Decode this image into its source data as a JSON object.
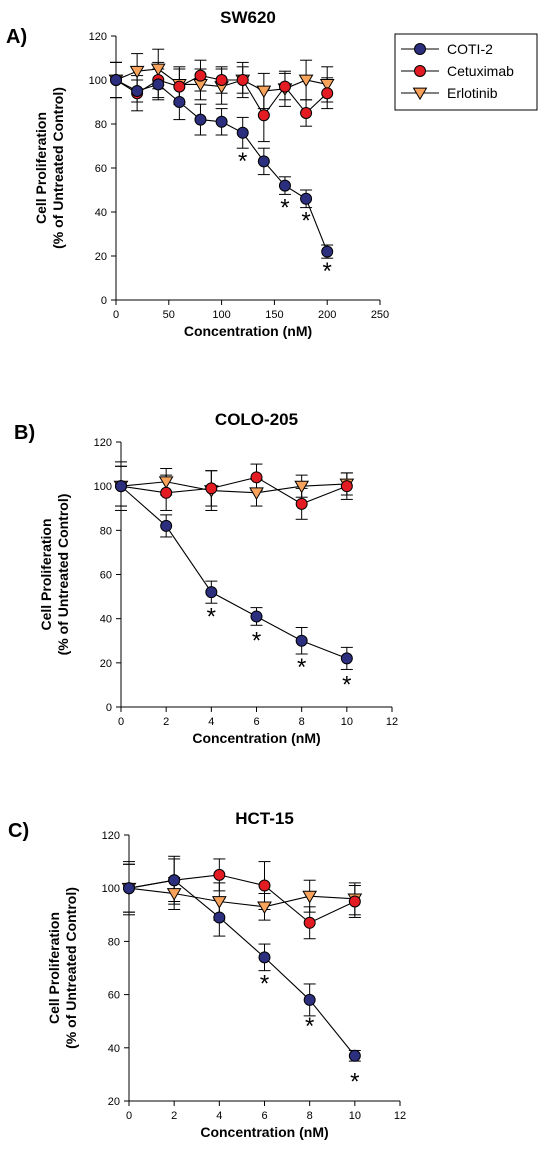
{
  "chart_data": [
    {
      "type": "line",
      "letter": "A)",
      "title": "SW620",
      "xlabel": "Concentration (nM)",
      "ylabel_line1": "Cell Proliferation",
      "ylabel_line2": "(% of Untreated Control)",
      "xlim": [
        0,
        250
      ],
      "ylim": [
        0,
        120
      ],
      "xticks": [
        "0",
        "50",
        "100",
        "150",
        "200",
        "250"
      ],
      "yticks": [
        "0",
        "20",
        "40",
        "60",
        "80",
        "100",
        "120"
      ],
      "series": [
        {
          "name": "COTI-2",
          "x": [
            0,
            20,
            40,
            60,
            80,
            100,
            120,
            140,
            160,
            180,
            200
          ],
          "y": [
            100,
            95,
            98,
            90,
            82,
            81,
            76,
            63,
            52,
            46,
            22
          ],
          "err": [
            8,
            5,
            7,
            8,
            7,
            6,
            7,
            6,
            4,
            4,
            3
          ]
        },
        {
          "name": "Cetuximab",
          "x": [
            0,
            20,
            40,
            60,
            80,
            100,
            120,
            140,
            160,
            180,
            200
          ],
          "y": [
            100,
            94,
            100,
            97,
            102,
            100,
            100,
            84,
            97,
            85,
            94
          ],
          "err": [
            8,
            8,
            8,
            8,
            7,
            6,
            6,
            12,
            6,
            6,
            7
          ]
        },
        {
          "name": "Erlotinib",
          "x": [
            0,
            20,
            40,
            60,
            80,
            100,
            120,
            140,
            160,
            180,
            200
          ],
          "y": [
            100,
            104,
            105,
            98,
            98,
            97,
            100,
            95,
            96,
            100,
            98
          ],
          "err": [
            8,
            8,
            9,
            8,
            7,
            8,
            8,
            8,
            8,
            9,
            8
          ]
        }
      ],
      "significance": [
        {
          "x": 120,
          "y": 64,
          "label": "*"
        },
        {
          "x": 160,
          "y": 43,
          "label": "*"
        },
        {
          "x": 180,
          "y": 37,
          "label": "*"
        },
        {
          "x": 200,
          "y": 14,
          "label": "*"
        }
      ],
      "legend": {
        "position": "right",
        "entries": [
          "COTI-2",
          "Cetuximab",
          "Erlotinib"
        ]
      }
    },
    {
      "type": "line",
      "letter": "B)",
      "title": "COLO-205",
      "xlabel": "Concentration (nM)",
      "ylabel_line1": "Cell Proliferation",
      "ylabel_line2": "(% of Untreated Control)",
      "xlim": [
        0,
        12
      ],
      "ylim": [
        0,
        120
      ],
      "xticks": [
        "0",
        "2",
        "4",
        "6",
        "8",
        "10",
        "12"
      ],
      "yticks": [
        "0",
        "20",
        "40",
        "60",
        "80",
        "100",
        "120"
      ],
      "series": [
        {
          "name": "COTI-2",
          "x": [
            0,
            2,
            4,
            6,
            8,
            10
          ],
          "y": [
            100,
            82,
            52,
            41,
            30,
            22
          ],
          "err": [
            9,
            5,
            5,
            4,
            6,
            5
          ]
        },
        {
          "name": "Cetuximab",
          "x": [
            0,
            2,
            4,
            6,
            8,
            10
          ],
          "y": [
            100,
            97,
            99,
            104,
            92,
            100
          ],
          "err": [
            9,
            8,
            8,
            6,
            7,
            6
          ]
        },
        {
          "name": "Erlotinib",
          "x": [
            0,
            2,
            4,
            6,
            8,
            10
          ],
          "y": [
            100,
            102,
            98,
            97,
            100,
            101
          ],
          "err": [
            11,
            6,
            9,
            6,
            5,
            5
          ]
        }
      ],
      "significance": [
        {
          "x": 4,
          "y": 42,
          "label": "*"
        },
        {
          "x": 6,
          "y": 31,
          "label": "*"
        },
        {
          "x": 8,
          "y": 19,
          "label": "*"
        },
        {
          "x": 10,
          "y": 11,
          "label": "*"
        }
      ]
    },
    {
      "type": "line",
      "letter": "C)",
      "title": "HCT-15",
      "xlabel": "Concentration (nM)",
      "ylabel_line1": "Cell Proliferation",
      "ylabel_line2": "(% of Untreated Control)",
      "xlim": [
        0,
        12
      ],
      "ylim": [
        20,
        120
      ],
      "xticks": [
        "0",
        "2",
        "4",
        "6",
        "8",
        "10",
        "12"
      ],
      "yticks": [
        "20",
        "40",
        "60",
        "80",
        "100",
        "120"
      ],
      "series": [
        {
          "name": "COTI-2",
          "x": [
            0,
            2,
            4,
            6,
            8,
            10
          ],
          "y": [
            100,
            103,
            89,
            74,
            58,
            37
          ],
          "err": [
            9,
            9,
            7,
            5,
            6,
            2
          ]
        },
        {
          "name": "Cetuximab",
          "x": [
            0,
            2,
            4,
            6,
            8,
            10
          ],
          "y": [
            100,
            103,
            105,
            101,
            87,
            95
          ],
          "err": [
            9,
            8,
            6,
            9,
            6,
            6
          ]
        },
        {
          "name": "Erlotinib",
          "x": [
            0,
            2,
            4,
            6,
            8,
            10
          ],
          "y": [
            100,
            98,
            95,
            93,
            97,
            96
          ],
          "err": [
            10,
            6,
            7,
            5,
            6,
            6
          ]
        }
      ],
      "significance": [
        {
          "x": 6,
          "y": 65,
          "label": "*"
        },
        {
          "x": 8,
          "y": 49,
          "label": "*"
        },
        {
          "x": 10,
          "y": 28,
          "label": "*"
        }
      ]
    }
  ],
  "colors": {
    "COTI-2": "#2b2f7e",
    "Cetuximab": "#e31b23",
    "Erlotinib": "#f7a35c",
    "axis": "#000000"
  },
  "markers": {
    "COTI-2": "circle",
    "Cetuximab": "circle",
    "Erlotinib": "triangle-down"
  }
}
